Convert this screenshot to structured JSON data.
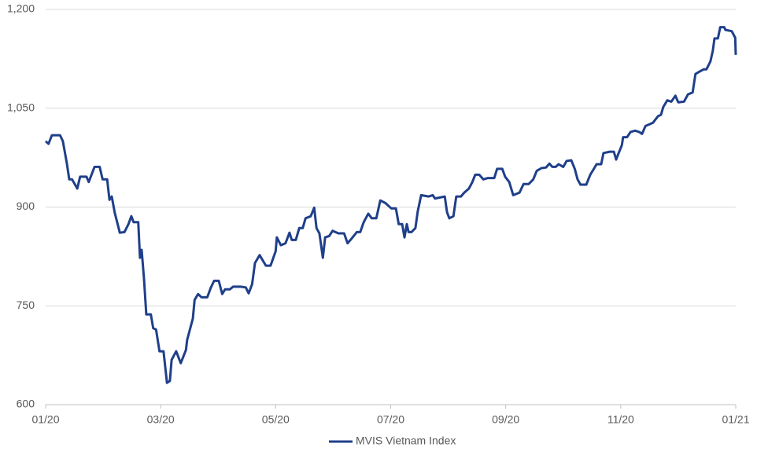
{
  "chart_data": {
    "type": "line",
    "x": [
      0,
      0.05,
      0.11,
      0.25,
      0.3,
      0.37,
      0.41,
      0.46,
      0.55,
      0.6,
      0.71,
      0.75,
      0.85,
      0.94,
      0.99,
      1.07,
      1.11,
      1.15,
      1.2,
      1.29,
      1.37,
      1.44,
      1.49,
      1.53,
      1.61,
      1.64,
      1.67,
      1.71,
      1.75,
      1.83,
      1.87,
      1.92,
      1.98,
      2.05,
      2.11,
      2.16,
      2.19,
      2.27,
      2.35,
      2.44,
      2.46,
      2.56,
      2.59,
      2.65,
      2.71,
      2.81,
      2.87,
      2.93,
      3.01,
      3.07,
      3.12,
      3.2,
      3.26,
      3.39,
      3.48,
      3.53,
      3.59,
      3.64,
      3.72,
      3.83,
      3.91,
      4.0,
      4.02,
      4.09,
      4.17,
      4.24,
      4.28,
      4.35,
      4.41,
      4.47,
      4.52,
      4.61,
      4.67,
      4.71,
      4.76,
      4.82,
      4.86,
      4.93,
      4.99,
      5.09,
      5.19,
      5.25,
      5.32,
      5.41,
      5.47,
      5.53,
      5.61,
      5.67,
      5.75,
      5.82,
      5.91,
      6.01,
      6.09,
      6.14,
      6.2,
      6.24,
      6.28,
      6.31,
      6.36,
      6.43,
      6.47,
      6.53,
      6.66,
      6.73,
      6.77,
      6.94,
      6.98,
      7.02,
      7.09,
      7.14,
      7.22,
      7.28,
      7.36,
      7.42,
      7.47,
      7.54,
      7.61,
      7.69,
      7.8,
      7.85,
      7.94,
      7.99,
      8.06,
      8.13,
      8.24,
      8.31,
      8.4,
      8.48,
      8.54,
      8.62,
      8.7,
      8.76,
      8.81,
      8.87,
      8.92,
      9.0,
      9.06,
      9.14,
      9.2,
      9.25,
      9.3,
      9.4,
      9.47,
      9.54,
      9.58,
      9.66,
      9.7,
      9.81,
      9.88,
      9.92,
      9.96,
      10.02,
      10.04,
      10.11,
      10.17,
      10.25,
      10.32,
      10.37,
      10.43,
      10.56,
      10.65,
      10.7,
      10.74,
      10.81,
      10.88,
      10.95,
      11.0,
      11.1,
      11.17,
      11.25,
      11.3,
      11.36,
      11.44,
      11.49,
      11.56,
      11.6,
      11.63,
      11.69,
      11.73,
      11.8,
      11.82,
      11.93,
      11.99,
      12.0
    ],
    "series": [
      {
        "name": "MVIS Vietnam Index",
        "color": "#1f3f8a",
        "values": [
          1000,
          996,
          1009,
          1009,
          1000,
          966,
          942,
          942,
          928,
          946,
          946,
          938,
          961,
          961,
          942,
          942,
          911,
          916,
          892,
          861,
          862,
          874,
          886,
          877,
          877,
          823,
          835,
          791,
          737,
          737,
          716,
          714,
          681,
          681,
          633,
          636,
          668,
          681,
          663,
          683,
          698,
          731,
          759,
          768,
          763,
          763,
          777,
          788,
          788,
          768,
          775,
          775,
          779,
          779,
          778,
          769,
          783,
          815,
          827,
          811,
          811,
          833,
          854,
          842,
          845,
          861,
          850,
          850,
          868,
          868,
          883,
          886,
          899,
          868,
          860,
          823,
          854,
          856,
          864,
          860,
          860,
          845,
          852,
          862,
          862,
          877,
          890,
          883,
          883,
          910,
          906,
          898,
          898,
          874,
          874,
          854,
          874,
          862,
          862,
          868,
          893,
          918,
          916,
          918,
          913,
          916,
          892,
          883,
          886,
          916,
          916,
          922,
          928,
          938,
          949,
          949,
          942,
          944,
          944,
          958,
          958,
          946,
          938,
          918,
          922,
          935,
          935,
          942,
          955,
          959,
          960,
          966,
          961,
          961,
          965,
          961,
          970,
          971,
          958,
          942,
          934,
          934,
          949,
          959,
          965,
          965,
          982,
          984,
          984,
          972,
          981,
          994,
          1006,
          1006,
          1014,
          1016,
          1014,
          1011,
          1023,
          1028,
          1038,
          1040,
          1052,
          1062,
          1060,
          1069,
          1059,
          1060,
          1071,
          1074,
          1102,
          1105,
          1109,
          1109,
          1121,
          1137,
          1156,
          1156,
          1173,
          1173,
          1169,
          1167,
          1157,
          1131
        ]
      }
    ],
    "xlim": [
      0,
      12
    ],
    "xticks": [
      {
        "value": 0,
        "label": "01/20"
      },
      {
        "value": 2,
        "label": "03/20"
      },
      {
        "value": 4,
        "label": "05/20"
      },
      {
        "value": 6,
        "label": "07/20"
      },
      {
        "value": 8,
        "label": "09/20"
      },
      {
        "value": 10,
        "label": "11/20"
      },
      {
        "value": 12,
        "label": "01/21"
      }
    ],
    "ylim": [
      600,
      1200
    ],
    "yticks": [
      600,
      750,
      900,
      {
        "value": 1050,
        "label": "1,050"
      },
      {
        "value": 1200,
        "label": "1,200"
      }
    ],
    "grid": true,
    "legend": "bottom"
  }
}
